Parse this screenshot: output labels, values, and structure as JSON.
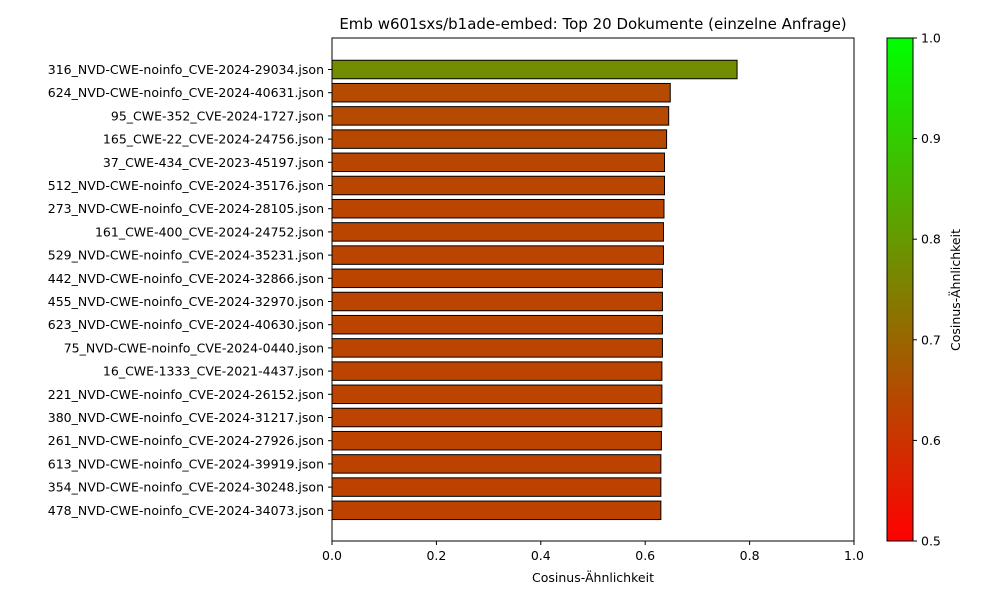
{
  "chart_data": {
    "type": "bar",
    "orientation": "horizontal",
    "title": "Emb w601sxs/b1ade-embed: Top 20 Dokumente (einzelne Anfrage)",
    "xlabel": "Cosinus-Ähnlichkeit",
    "ylabel": "",
    "xlim": [
      0,
      1.0
    ],
    "x_ticks": [
      "0.0",
      "0.2",
      "0.4",
      "0.6",
      "0.8",
      "1.0"
    ],
    "grid": false,
    "categories": [
      "316_NVD-CWE-noinfo_CVE-2024-29034.json",
      "624_NVD-CWE-noinfo_CVE-2024-40631.json",
      "95_CWE-352_CVE-2024-1727.json",
      "165_CWE-22_CVE-2024-24756.json",
      "37_CWE-434_CVE-2023-45197.json",
      "512_NVD-CWE-noinfo_CVE-2024-35176.json",
      "273_NVD-CWE-noinfo_CVE-2024-28105.json",
      "161_CWE-400_CVE-2024-24752.json",
      "529_NVD-CWE-noinfo_CVE-2024-35231.json",
      "442_NVD-CWE-noinfo_CVE-2024-32866.json",
      "455_NVD-CWE-noinfo_CVE-2024-32970.json",
      "623_NVD-CWE-noinfo_CVE-2024-40630.json",
      "75_NVD-CWE-noinfo_CVE-2024-0440.json",
      "16_CWE-1333_CVE-2021-4437.json",
      "221_NVD-CWE-noinfo_CVE-2024-26152.json",
      "380_NVD-CWE-noinfo_CVE-2024-31217.json",
      "261_NVD-CWE-noinfo_CVE-2024-27926.json",
      "613_NVD-CWE-noinfo_CVE-2024-39919.json",
      "354_NVD-CWE-noinfo_CVE-2024-30248.json",
      "478_NVD-CWE-noinfo_CVE-2024-34073.json"
    ],
    "values": [
      0.776,
      0.648,
      0.645,
      0.641,
      0.637,
      0.637,
      0.636,
      0.635,
      0.635,
      0.633,
      0.633,
      0.633,
      0.633,
      0.632,
      0.632,
      0.632,
      0.631,
      0.63,
      0.63,
      0.63
    ],
    "colorbar": {
      "label": "Cosinus-Ähnlichkeit",
      "range": [
        0.5,
        1.0
      ],
      "ticks": [
        "0.5",
        "0.6",
        "0.7",
        "0.8",
        "0.9",
        "1.0"
      ],
      "color_low": "#ff0000",
      "color_high": "#00ff00"
    }
  }
}
